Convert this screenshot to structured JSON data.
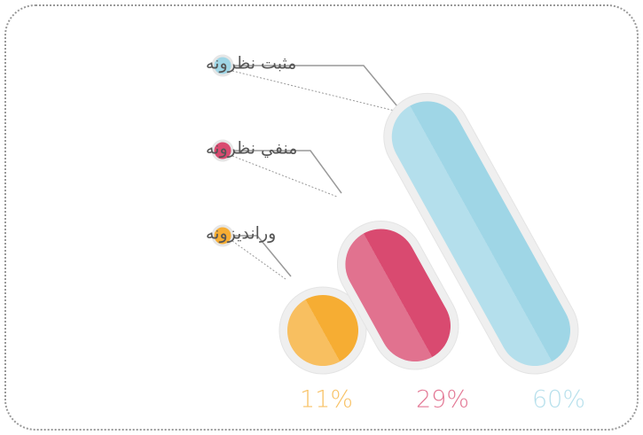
{
  "chart_data": {
    "type": "bar",
    "categories": [
      "وراندیزونه",
      "منفي نظرونه",
      "مثبت نظرونه"
    ],
    "values": [
      11,
      29,
      60
    ],
    "value_labels": [
      "11%",
      "29%",
      "60%"
    ],
    "colors": [
      "#f6ad33",
      "#d94a70",
      "#9fd6e6"
    ]
  }
}
